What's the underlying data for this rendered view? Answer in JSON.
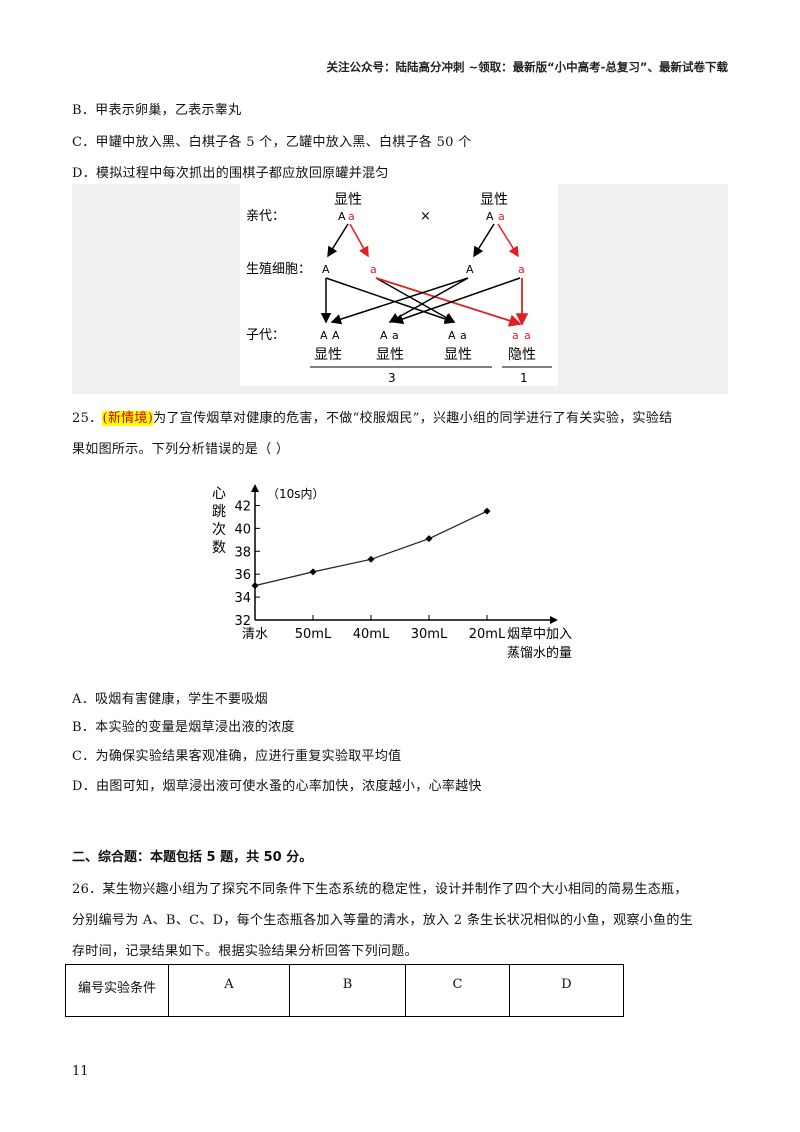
{
  "header": {
    "note": "关注公众号：陆陆高分冲刺  ~领取：最新版“小中高考-总复习”、最新试卷下载"
  },
  "prev_options": {
    "B": "B．甲表示卵巢，乙表示睾丸",
    "C": "C．甲罐中放入黑、白棋子各 5 个，乙罐中放入黑、白棋子各 50 个",
    "D": "D．模拟过程中每次抓出的围棋子都应放回原罐并混匀"
  },
  "genetics": {
    "parent_label": "亲代：",
    "gamete_label": "生殖细胞：",
    "child_label": "子代：",
    "dominant": "显性",
    "recessive": "隐性",
    "cross": "×",
    "left_parent": [
      "A",
      "a"
    ],
    "right_parent": [
      "A",
      "a"
    ],
    "gametes": [
      "A",
      "a",
      "A",
      "a"
    ],
    "children": [
      [
        "A",
        "A"
      ],
      [
        "A",
        "a"
      ],
      [
        "A",
        "a"
      ],
      [
        "a",
        "a"
      ]
    ],
    "ratio": [
      "3",
      "1"
    ],
    "colors": {
      "dominant": "#000000",
      "recessive": "#e02020"
    }
  },
  "q25": {
    "number": "25．",
    "tag": "(新情境)",
    "stem_line1": "为了宣传烟草对健康的危害，不做“校服烟民”，兴趣小组的同学进行了有关实验，实验结",
    "stem_line2": "果如图所示。下列分析错误的是（     ）",
    "options": {
      "A": "A．吸烟有害健康，学生不要吸烟",
      "B": "B．本实验的变量是烟草浸出液的浓度",
      "C": "C．为确保实验结果客观准确，应进行重复实验取平均值",
      "D": "D．由图可知，烟草浸出液可使水蚤的心率加快，浓度越小，心率越快"
    }
  },
  "chart_data": {
    "type": "line",
    "title": "（10s内）",
    "ylabel": [
      "心",
      "跳",
      "次",
      "数"
    ],
    "xlabel_line1": "烟草中加入",
    "xlabel_line2": "蒸馏水的量",
    "categories": [
      "清水",
      "50mL",
      "40mL",
      "30mL",
      "20mL"
    ],
    "values": [
      35,
      36.2,
      37.3,
      39.1,
      41.5
    ],
    "yticks": [
      "32",
      "34",
      "36",
      "38",
      "40",
      "42"
    ],
    "ylim": [
      32,
      43
    ],
    "grid": false
  },
  "section2": {
    "heading": "二、综合题：本题包括 5 题，共 50 分。"
  },
  "q26": {
    "line1": "26．某生物兴趣小组为了探究不同条件下生态系统的稳定性，设计并制作了四个大小相同的简易生态瓶，",
    "line2": "分别编号为 A、B、C、D，每个生态瓶各加入等量的清水，放入 2 条生长状况相似的小鱼，观察小鱼的生",
    "line3": "存时间，记录结果如下。根据实验结果分析回答下列问题。",
    "table_header": [
      "编号实验条件",
      "A",
      "B",
      "C",
      "D"
    ]
  },
  "page_number": "11"
}
